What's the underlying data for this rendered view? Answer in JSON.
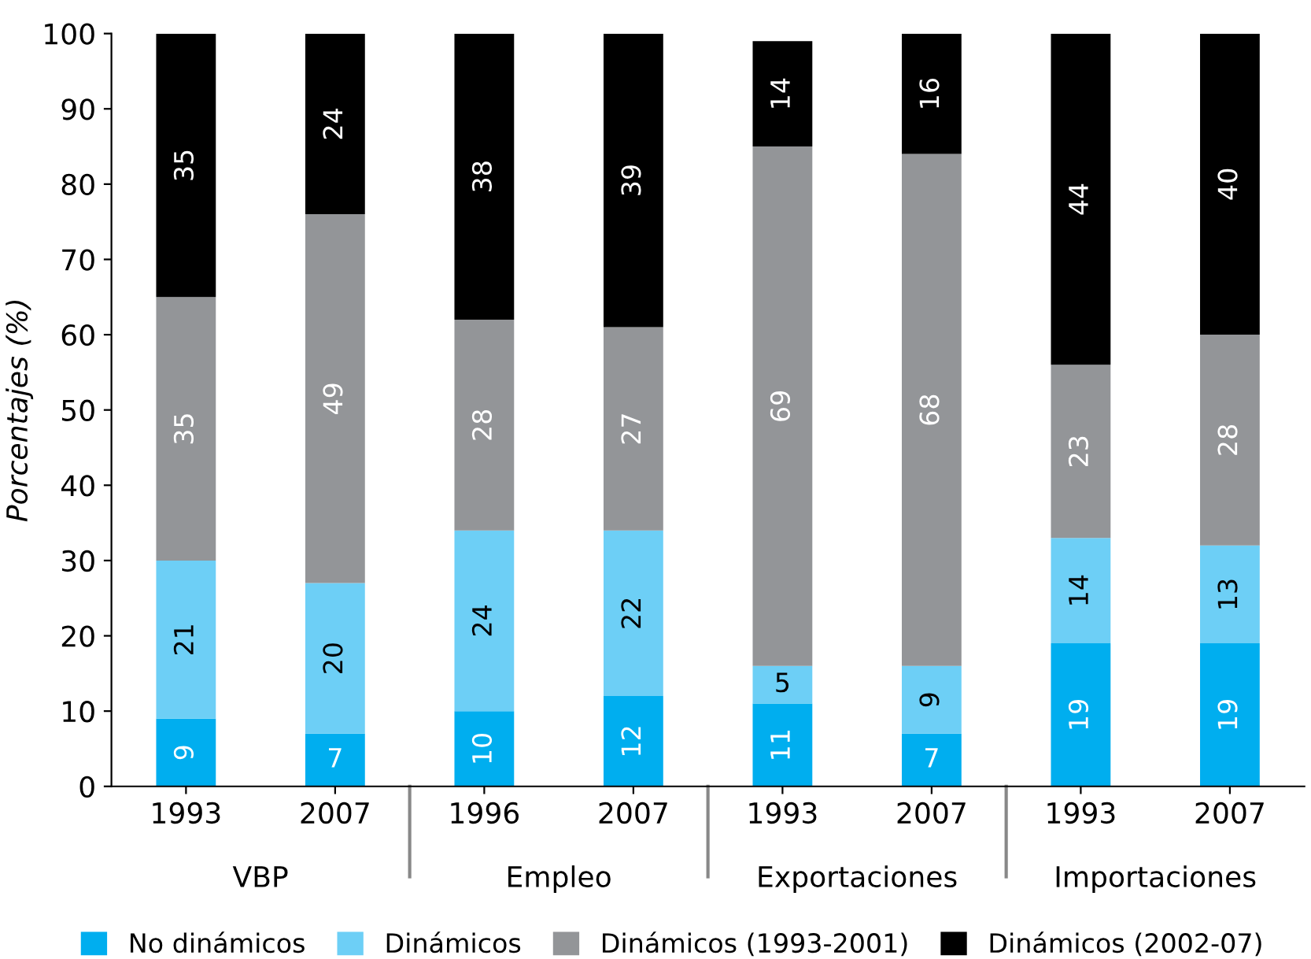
{
  "chart_data": {
    "type": "bar",
    "stacked": true,
    "ylabel": "Porcentajes (%)",
    "categories": [
      "1993",
      "2007",
      "1996",
      "2007",
      "1993",
      "2007",
      "1993",
      "2007"
    ],
    "series": [
      {
        "name": "No dinámicos",
        "color": "#00aeef",
        "values": [
          9,
          7,
          10,
          12,
          11,
          7,
          19,
          19
        ]
      },
      {
        "name": "Dinámicos",
        "color": "#6dcff6",
        "values": [
          21,
          20,
          24,
          22,
          5,
          9,
          14,
          13
        ]
      },
      {
        "name": "Dinámicos (1993-2001)",
        "color": "#939598",
        "values": [
          35,
          49,
          28,
          27,
          69,
          68,
          23,
          28
        ]
      },
      {
        "name": "Dinámicos (2002-07)",
        "color": "#000000",
        "values": [
          35,
          24,
          38,
          39,
          14,
          16,
          44,
          40
        ]
      }
    ],
    "annotations": [
      "VBP",
      "Empleo",
      "Exportaciones",
      "Importaciones"
    ],
    "ylim": [
      0,
      100
    ],
    "yticks": [
      0,
      10,
      20,
      30,
      40,
      50,
      60,
      70,
      80,
      90,
      100
    ],
    "data_labels": true,
    "legend": "bottom",
    "grid": false
  }
}
